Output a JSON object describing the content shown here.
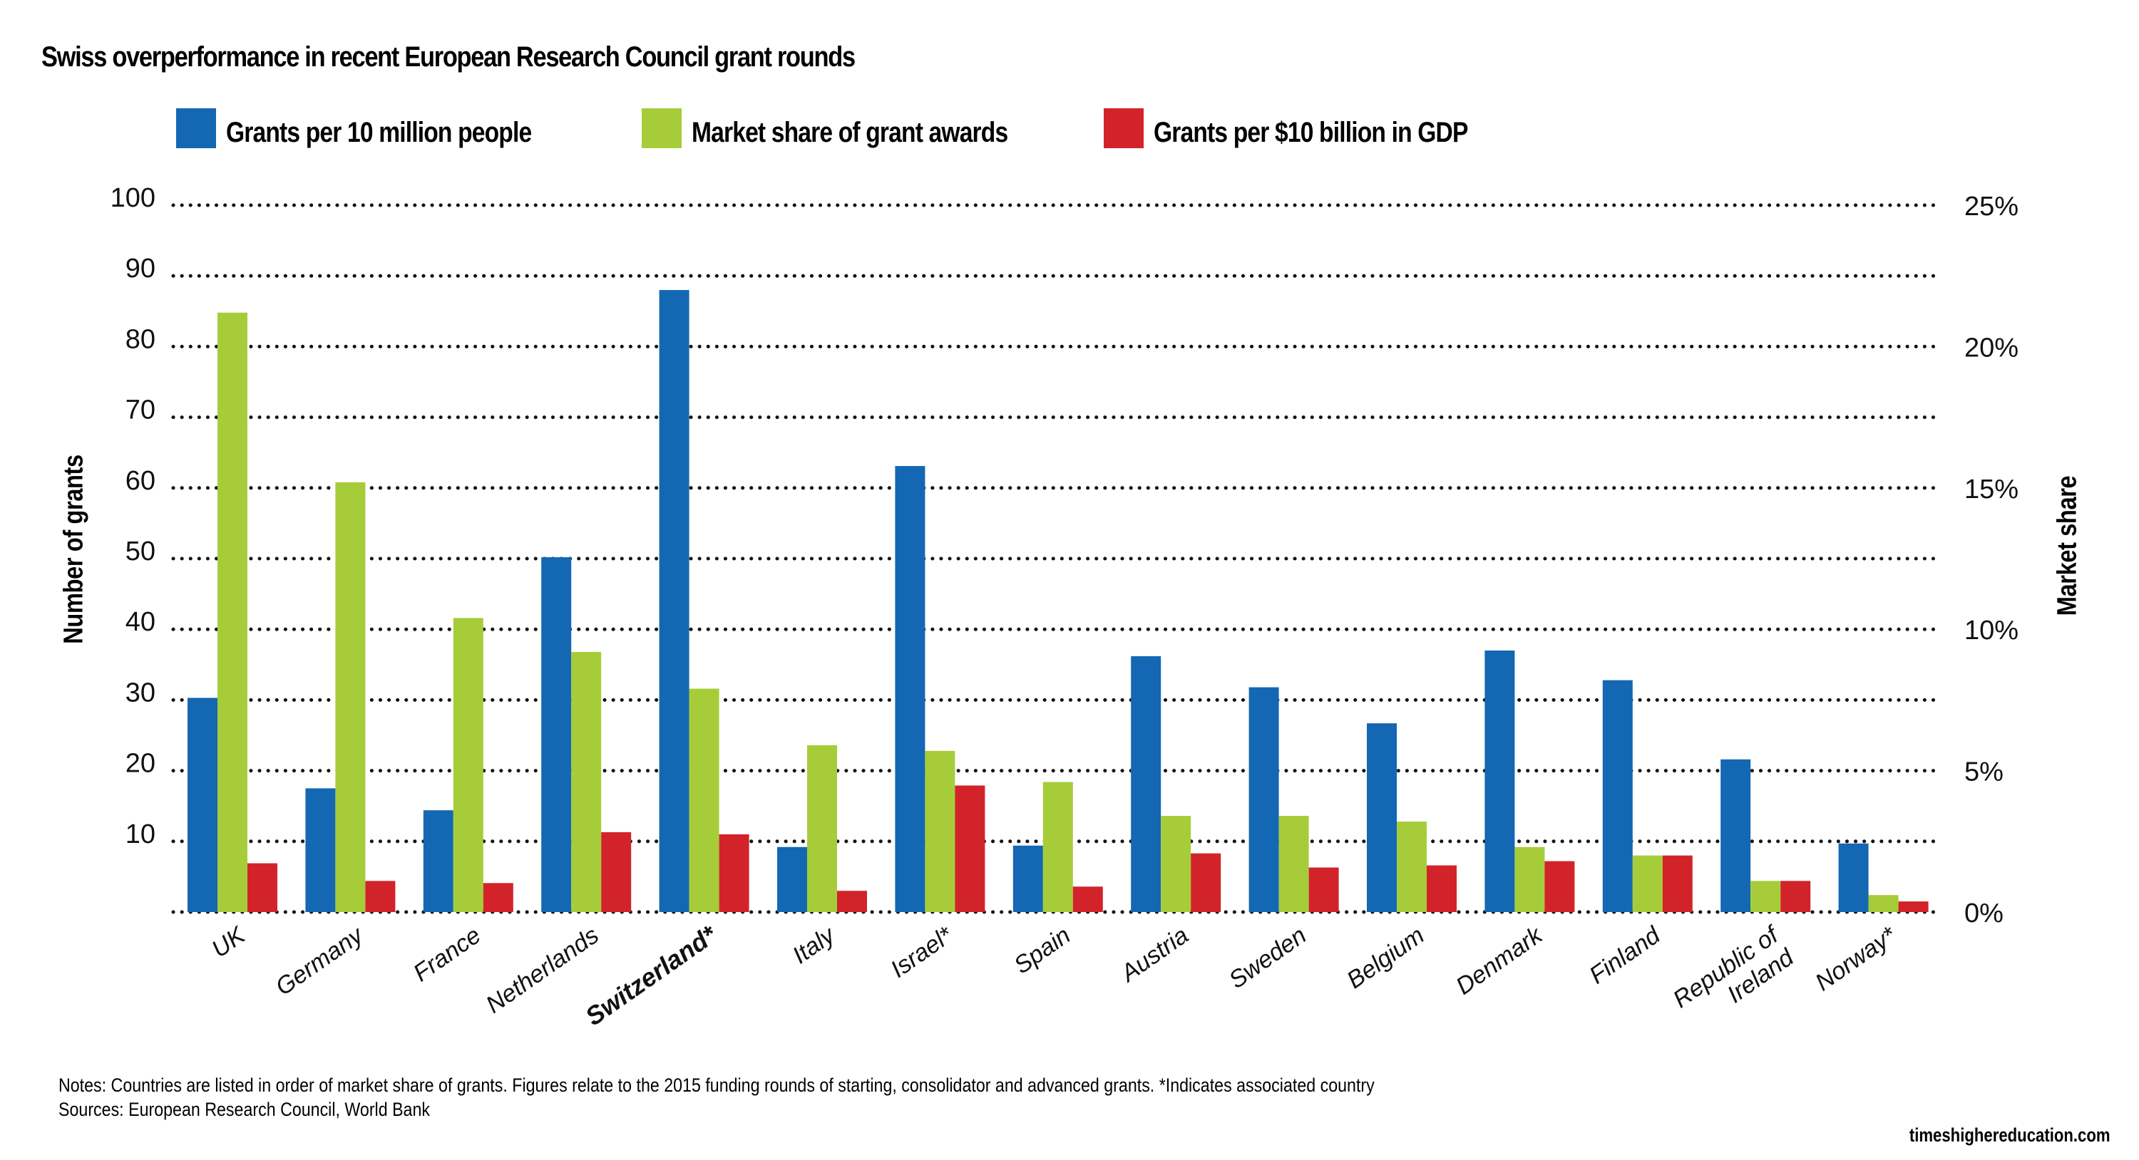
{
  "chart_data": {
    "type": "bar",
    "title": "Swiss overperformance in recent European Research Council grant rounds",
    "xlabel": "",
    "ylabel": "Number of grants",
    "ylabel_right": "Market share",
    "ylim": [
      0,
      100
    ],
    "ylim_right": [
      0,
      25
    ],
    "yticks": [
      "10",
      "20",
      "30",
      "40",
      "50",
      "60",
      "70",
      "80",
      "90",
      "100"
    ],
    "yticks_values": [
      10,
      20,
      30,
      40,
      50,
      60,
      70,
      80,
      90,
      100
    ],
    "yticks_right": [
      "0%",
      "5%",
      "10%",
      "15%",
      "20%",
      "25%"
    ],
    "yticks_right_values": [
      0,
      5,
      10,
      15,
      20,
      25
    ],
    "grid": true,
    "legend_position": "top",
    "categories": [
      "UK",
      "Germany",
      "France",
      "Netherlands",
      "Switzerland*",
      "Italy",
      "Israel*",
      "Spain",
      "Austria",
      "Sweden",
      "Belgium",
      "Denmark",
      "Finland",
      "Republic of Ireland",
      "Norway*"
    ],
    "category_lines": [
      [
        "UK"
      ],
      [
        "Germany"
      ],
      [
        "France"
      ],
      [
        "Netherlands"
      ],
      [
        "Switzerland*"
      ],
      [
        "Italy"
      ],
      [
        "Israel*"
      ],
      [
        "Spain"
      ],
      [
        "Austria"
      ],
      [
        "Sweden"
      ],
      [
        "Belgium"
      ],
      [
        "Denmark"
      ],
      [
        "Finland"
      ],
      [
        "Republic of",
        "Ireland"
      ],
      [
        "Norway*"
      ]
    ],
    "highlighted_category": "Switzerland*",
    "series": [
      {
        "name": "Grants per 10 million people",
        "axis": "left",
        "color": "#1467b2",
        "values": [
          30.3,
          17.5,
          14.4,
          50.2,
          88.0,
          9.2,
          63.1,
          9.4,
          36.2,
          31.8,
          26.7,
          37.0,
          32.8,
          21.6,
          9.7
        ]
      },
      {
        "name": "Market share of grant awards",
        "axis": "right",
        "unit": "%",
        "color": "#a6cd39",
        "values": [
          21.2,
          15.2,
          10.4,
          9.2,
          7.9,
          5.9,
          5.7,
          4.6,
          3.4,
          3.4,
          3.2,
          2.3,
          2.0,
          1.1,
          0.6
        ]
      },
      {
        "name": "Grants per $10 billion in GDP",
        "axis": "left",
        "color": "#d2232b",
        "values": [
          6.9,
          4.4,
          4.1,
          11.3,
          11.0,
          3.0,
          17.9,
          3.6,
          8.3,
          6.3,
          6.6,
          7.2,
          8.0,
          4.4,
          1.5
        ]
      }
    ]
  },
  "notes": "Notes: Countries are listed in order of market share of grants. Figures relate to the 2015 funding rounds of starting, consolidator and advanced grants. *Indicates associated country",
  "sources": "Sources: European Research Council, World Bank",
  "credit": "timeshighereducation.com"
}
